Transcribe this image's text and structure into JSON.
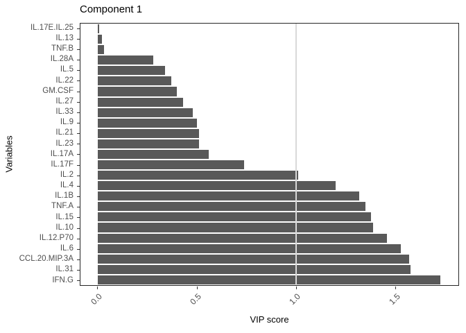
{
  "chart_data": {
    "type": "bar",
    "orientation": "horizontal",
    "title": "Component 1",
    "xlabel": "VIP score",
    "ylabel": "Variables",
    "categories": [
      "IL.17E.IL.25",
      "IL.13",
      "TNF.B",
      "IL.28A",
      "IL.5",
      "IL.22",
      "GM.CSF",
      "IL.27",
      "IL.33",
      "IL.9",
      "IL.21",
      "IL.23",
      "IL.17A",
      "IL.17F",
      "IL.2",
      "IL.4",
      "IL.1B",
      "TNF.A",
      "IL.15",
      "IL.10",
      "IL.12.P70",
      "IL.6",
      "CCL.20.MIP.3A",
      "IL.31",
      "IFN.G"
    ],
    "values": [
      0.005,
      0.02,
      0.03,
      0.28,
      0.34,
      0.37,
      0.4,
      0.43,
      0.48,
      0.5,
      0.51,
      0.51,
      0.56,
      0.74,
      1.01,
      1.2,
      1.32,
      1.35,
      1.38,
      1.39,
      1.46,
      1.53,
      1.57,
      1.58,
      1.73
    ],
    "x_ticks": [
      "0.0",
      "0.5",
      "1.0",
      "1.5"
    ],
    "x_tick_values": [
      0,
      0.5,
      1.0,
      1.5
    ],
    "xlim": [
      -0.088,
      1.82
    ],
    "reference_line_x": 1.0,
    "bar_color": "#595959",
    "reference_line_color": "#d9d9d9",
    "grid": "off",
    "legend": "none"
  }
}
